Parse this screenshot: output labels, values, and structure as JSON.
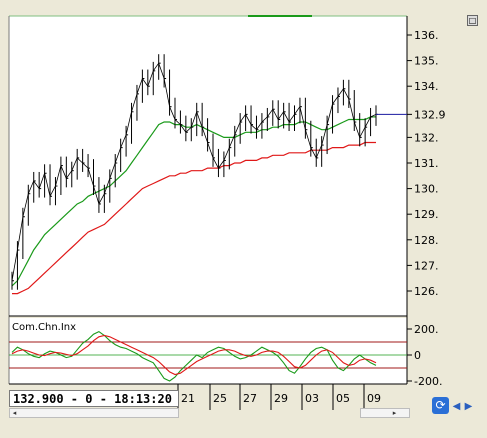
{
  "chart_data": [
    {
      "type": "line",
      "title": "",
      "price_axis": {
        "ticks": [
          136,
          135,
          134,
          133,
          132,
          131,
          130,
          129,
          128,
          127,
          126
        ],
        "tick_labels": [
          "136.",
          "135.",
          "134.",
          "132.9",
          "132.",
          "131.",
          "130.",
          "129.",
          "128.",
          "127.",
          "126."
        ]
      },
      "x_tick_labels": [
        "21",
        "25",
        "27",
        "29",
        "03",
        "05",
        "09"
      ],
      "last_price": 132.9,
      "price_series": [
        126.4,
        127.6,
        128.9,
        129.8,
        130.3,
        130.0,
        130.6,
        129.7,
        130.1,
        130.9,
        130.4,
        130.7,
        131.2,
        131.0,
        130.8,
        130.1,
        129.4,
        129.8,
        130.4,
        131.0,
        131.6,
        132.1,
        133.0,
        133.7,
        134.3,
        134.0,
        134.6,
        134.9,
        134.3,
        133.2,
        132.7,
        132.5,
        132.2,
        132.4,
        133.0,
        132.4,
        131.8,
        131.2,
        130.8,
        131.1,
        131.6,
        132.1,
        132.6,
        132.9,
        132.5,
        132.3,
        132.6,
        132.8,
        133.1,
        132.7,
        133.0,
        132.6,
        132.9,
        133.2,
        132.3,
        131.6,
        131.2,
        131.7,
        132.5,
        133.3,
        133.6,
        133.9,
        133.5,
        132.6,
        132.0,
        132.4,
        132.8,
        132.9
      ],
      "series": [
        {
          "name": "",
          "values": [
            126.2,
            126.4,
            126.8,
            127.2,
            127.6,
            127.9,
            128.2,
            128.4,
            128.6,
            128.8,
            129.0,
            129.2,
            129.4,
            129.5,
            129.7,
            129.8,
            129.9,
            130.0,
            130.1,
            130.3,
            130.5,
            130.7,
            131.0,
            131.3,
            131.6,
            131.9,
            132.2,
            132.5,
            132.6,
            132.6,
            132.5,
            132.5,
            132.4,
            132.4,
            132.5,
            132.4,
            132.3,
            132.2,
            132.1,
            132.0,
            132.0,
            132.0,
            132.1,
            132.2,
            132.2,
            132.2,
            132.3,
            132.3,
            132.4,
            132.4,
            132.5,
            132.5,
            132.5,
            132.6,
            132.6,
            132.5,
            132.4,
            132.3,
            132.3,
            132.4,
            132.5,
            132.6,
            132.7,
            132.7,
            132.7,
            132.7,
            132.8,
            132.8
          ]
        },
        {
          "name": "",
          "values": [
            125.9,
            125.9,
            126.0,
            126.1,
            126.3,
            126.5,
            126.7,
            126.9,
            127.1,
            127.3,
            127.5,
            127.7,
            127.9,
            128.1,
            128.3,
            128.4,
            128.5,
            128.6,
            128.8,
            129.0,
            129.2,
            129.4,
            129.6,
            129.8,
            130.0,
            130.1,
            130.2,
            130.3,
            130.4,
            130.5,
            130.5,
            130.6,
            130.6,
            130.7,
            130.7,
            130.7,
            130.8,
            130.8,
            130.8,
            130.9,
            130.9,
            131.0,
            131.0,
            131.1,
            131.1,
            131.1,
            131.2,
            131.2,
            131.3,
            131.3,
            131.3,
            131.4,
            131.4,
            131.4,
            131.4,
            131.5,
            131.5,
            131.5,
            131.5,
            131.6,
            131.6,
            131.6,
            131.7,
            131.7,
            131.7,
            131.8,
            131.8,
            131.8
          ]
        }
      ]
    },
    {
      "type": "line",
      "title": "Com.Chn.Inx",
      "y_ticks": [
        200,
        0,
        -200
      ],
      "y_tick_labels": [
        "200.",
        "0",
        "-200."
      ],
      "levels": [
        100,
        -100
      ],
      "series": [
        {
          "name": "",
          "values": [
            20,
            60,
            40,
            10,
            -10,
            -20,
            10,
            30,
            20,
            0,
            -20,
            -10,
            40,
            90,
            120,
            160,
            180,
            150,
            110,
            80,
            60,
            50,
            30,
            10,
            -20,
            -40,
            -60,
            -120,
            -180,
            -200,
            -170,
            -120,
            -80,
            -40,
            0,
            -20,
            20,
            40,
            60,
            50,
            20,
            -10,
            -30,
            -20,
            0,
            30,
            60,
            40,
            20,
            -10,
            -60,
            -120,
            -140,
            -90,
            -30,
            20,
            50,
            60,
            40,
            -40,
            -100,
            -120,
            -80,
            -30,
            0,
            -30,
            -60,
            -80
          ]
        },
        {
          "name": "",
          "values": [
            10,
            30,
            40,
            30,
            15,
            0,
            -5,
            10,
            20,
            15,
            5,
            -5,
            10,
            40,
            70,
            110,
            140,
            150,
            140,
            120,
            100,
            80,
            60,
            40,
            20,
            0,
            -20,
            -50,
            -90,
            -130,
            -150,
            -140,
            -110,
            -80,
            -50,
            -30,
            -10,
            10,
            30,
            40,
            40,
            30,
            10,
            -5,
            -10,
            0,
            20,
            30,
            30,
            20,
            -10,
            -50,
            -90,
            -100,
            -80,
            -40,
            0,
            30,
            40,
            20,
            -20,
            -60,
            -80,
            -70,
            -40,
            -30,
            -40,
            -60
          ]
        }
      ]
    }
  ],
  "status": {
    "text": "132.900 - 0 - 18:13:20"
  },
  "colors": {
    "ma_fast": "#1a9a1a",
    "ma_slow": "#e01818",
    "price": "#000000",
    "last_price_line": "#1a1aa0",
    "level_band": "#a01818",
    "plot_border": "#000000",
    "panel_border": "#7fbf7f"
  },
  "icons": {
    "refresh": "refresh-icon",
    "left": "arrow-left-icon",
    "right": "arrow-right-icon",
    "maximize": "maximize-icon"
  }
}
